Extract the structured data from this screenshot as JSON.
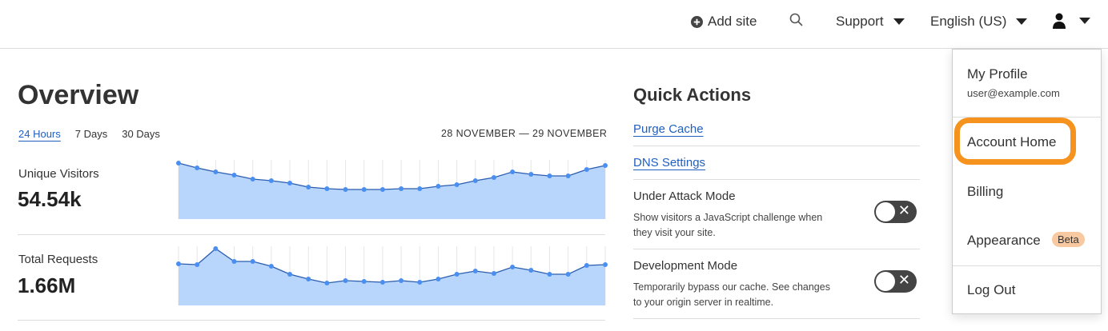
{
  "topbar": {
    "add_site": "Add site",
    "support": "Support",
    "language": "English (US)"
  },
  "overview": {
    "title": "Overview",
    "tabs": [
      {
        "label": "24 Hours",
        "active": true
      },
      {
        "label": "7 Days",
        "active": false
      },
      {
        "label": "30 Days",
        "active": false
      }
    ],
    "date_range": "28 NOVEMBER — 29 NOVEMBER",
    "metrics": [
      {
        "label": "Unique Visitors",
        "value": "54.54k"
      },
      {
        "label": "Total Requests",
        "value": "1.66M"
      }
    ]
  },
  "chart_data": [
    {
      "type": "area",
      "series": [
        {
          "values": [
            70,
            64,
            59,
            55,
            50,
            48,
            45,
            40,
            38,
            37,
            37,
            37,
            38,
            38,
            41,
            43,
            48,
            52,
            59,
            56,
            54,
            54,
            62,
            67
          ]
        }
      ],
      "color": "#4a8ff0",
      "fill": "#b8d5fb"
    },
    {
      "type": "area",
      "series": [
        {
          "values": [
            52,
            51,
            71,
            55,
            55,
            49,
            39,
            33,
            28,
            31,
            30,
            29,
            31,
            29,
            33,
            39,
            43,
            40,
            48,
            44,
            39,
            39,
            50,
            51
          ]
        }
      ],
      "color": "#4a8ff0",
      "fill": "#b8d5fb"
    }
  ],
  "quick_actions": {
    "title": "Quick Actions",
    "links": [
      "Purge Cache",
      "DNS Settings"
    ],
    "toggles": [
      {
        "title": "Under Attack Mode",
        "desc": "Show visitors a JavaScript challenge when they visit your site.",
        "on": false
      },
      {
        "title": "Development Mode",
        "desc": "Temporarily bypass our cache. See changes to your origin server in realtime.",
        "on": false
      }
    ]
  },
  "user_menu": {
    "profile": "My Profile",
    "email": "user@example.com",
    "account_home": "Account Home",
    "billing": "Billing",
    "appearance": "Appearance",
    "beta_badge": "Beta",
    "logout": "Log Out",
    "highlight_color": "#f6921e"
  }
}
